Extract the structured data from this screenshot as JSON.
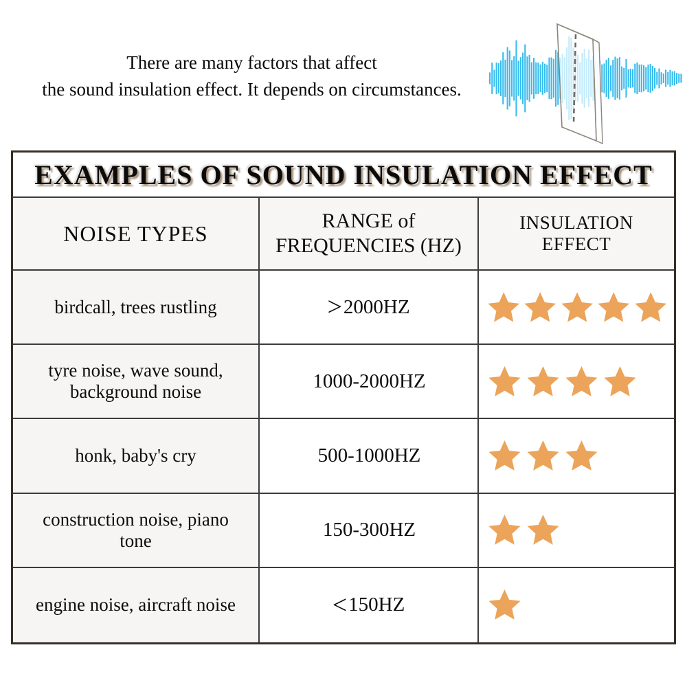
{
  "intro": {
    "line1": "There are many factors that affect",
    "line2": "the sound insulation effect. It depends on circumstances."
  },
  "illustration": {
    "name": "sound-wave-passing-through-panel",
    "wave_color": "#3DBDEE",
    "panel_outline_color": "#8b857c"
  },
  "table": {
    "title": "EXAMPLES OF SOUND INSULATION EFFECT",
    "title_bg": "#ECA14F",
    "star_color": "#ECA45A",
    "border_color": "#3b3b3b",
    "columns": [
      "NOISE TYPES",
      "RANGE of\nFREQUENCIES (HZ)",
      "INSULATION EFFECT"
    ],
    "rows": [
      {
        "noise_types": "birdcall, trees rustling",
        "frequency_symbol": ">",
        "frequency": "2000HZ",
        "stars": 5
      },
      {
        "noise_types": "tyre noise, wave sound,\nbackground noise",
        "frequency_symbol": "",
        "frequency": "1000-2000HZ",
        "stars": 4
      },
      {
        "noise_types": "honk, baby's cry",
        "frequency_symbol": "",
        "frequency": "500-1000HZ",
        "stars": 3
      },
      {
        "noise_types": "construction noise, piano\ntone",
        "frequency_symbol": "",
        "frequency": "150-300HZ",
        "stars": 2
      },
      {
        "noise_types": "engine noise, aircraft noise",
        "frequency_symbol": "<",
        "frequency": "150HZ",
        "stars": 1
      }
    ]
  }
}
